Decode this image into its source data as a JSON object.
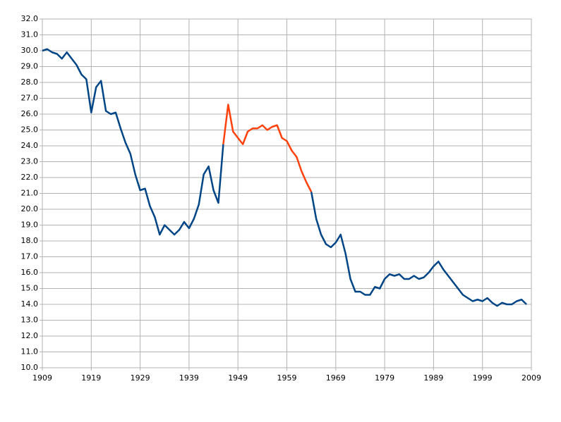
{
  "chart_data": {
    "type": "line",
    "x": [
      1909,
      1910,
      1911,
      1912,
      1913,
      1914,
      1915,
      1916,
      1917,
      1918,
      1919,
      1920,
      1921,
      1922,
      1923,
      1924,
      1925,
      1926,
      1927,
      1928,
      1929,
      1930,
      1931,
      1932,
      1933,
      1934,
      1935,
      1936,
      1937,
      1938,
      1939,
      1940,
      1941,
      1942,
      1943,
      1944,
      1945,
      1946,
      1947,
      1948,
      1949,
      1950,
      1951,
      1952,
      1953,
      1954,
      1955,
      1956,
      1957,
      1958,
      1959,
      1960,
      1961,
      1962,
      1963,
      1964,
      1965,
      1966,
      1967,
      1968,
      1969,
      1970,
      1971,
      1972,
      1973,
      1974,
      1975,
      1976,
      1977,
      1978,
      1979,
      1980,
      1981,
      1982,
      1983,
      1984,
      1985,
      1986,
      1987,
      1988,
      1989,
      1990,
      1991,
      1992,
      1993,
      1994,
      1995,
      1996,
      1997,
      1998,
      1999,
      2000,
      2001,
      2002,
      2003,
      2004,
      2005,
      2006,
      2007,
      2008
    ],
    "series": [
      {
        "color": "#004586",
        "values": [
          30.0,
          30.1,
          29.9,
          29.8,
          29.5,
          29.9,
          29.5,
          29.1,
          28.5,
          28.2,
          26.1,
          27.7,
          28.1,
          26.2,
          26.0,
          26.1,
          25.1,
          24.2,
          23.5,
          22.2,
          21.2,
          21.3,
          20.2,
          19.5,
          18.4,
          19.0,
          18.7,
          18.4,
          18.7,
          19.2,
          18.8,
          19.4,
          20.3,
          22.2,
          22.7,
          21.2,
          20.4,
          24.1,
          null,
          null,
          null,
          null,
          null,
          null,
          null,
          null,
          null,
          null,
          null,
          null,
          null,
          null,
          null,
          null,
          null,
          21.1,
          19.4,
          18.4,
          17.8,
          17.6,
          17.9,
          18.4,
          17.2,
          15.6,
          14.8,
          14.8,
          14.6,
          14.6,
          15.1,
          15.0,
          15.6,
          15.9,
          15.8,
          15.9,
          15.6,
          15.6,
          15.8,
          15.6,
          15.7,
          16.0,
          16.4,
          16.7,
          16.2,
          15.8,
          15.4,
          15.0,
          14.6,
          14.4,
          14.2,
          14.3,
          14.2,
          14.4,
          14.1,
          13.9,
          14.1,
          14.0,
          14.0,
          14.2,
          14.3,
          14.0
        ]
      },
      {
        "color": "#ff420e",
        "values": [
          null,
          null,
          null,
          null,
          null,
          null,
          null,
          null,
          null,
          null,
          null,
          null,
          null,
          null,
          null,
          null,
          null,
          null,
          null,
          null,
          null,
          null,
          null,
          null,
          null,
          null,
          null,
          null,
          null,
          null,
          null,
          null,
          null,
          null,
          null,
          null,
          null,
          24.1,
          26.6,
          24.9,
          24.5,
          24.1,
          24.9,
          25.1,
          25.1,
          25.3,
          25.0,
          25.2,
          25.3,
          24.5,
          24.3,
          23.7,
          23.3,
          22.4,
          21.7,
          21.1,
          null,
          null,
          null,
          null,
          null,
          null,
          null,
          null,
          null,
          null,
          null,
          null,
          null,
          null,
          null,
          null,
          null,
          null,
          null,
          null,
          null,
          null,
          null,
          null,
          null,
          null,
          null,
          null,
          null,
          null,
          null,
          null,
          null,
          null,
          null,
          null,
          null,
          null,
          null,
          null,
          null,
          null,
          null,
          null
        ]
      }
    ],
    "xlim": [
      1909,
      2009
    ],
    "xticks": [
      1909,
      1919,
      1929,
      1939,
      1949,
      1959,
      1969,
      1979,
      1989,
      1999,
      2009
    ],
    "ylim": [
      10,
      32
    ],
    "yticks": [
      {
        "value": 10,
        "label": "10.0"
      },
      {
        "value": 11,
        "label": "11.0"
      },
      {
        "value": 12,
        "label": "12.0"
      },
      {
        "value": 13,
        "label": "13.0"
      },
      {
        "value": 14,
        "label": "14.0"
      },
      {
        "value": 15,
        "label": "15.0"
      },
      {
        "value": 16,
        "label": "16.0"
      },
      {
        "value": 17,
        "label": "17.0"
      },
      {
        "value": 18,
        "label": "18.0"
      },
      {
        "value": 19,
        "label": "19.0"
      },
      {
        "value": 20,
        "label": "20.0"
      },
      {
        "value": 21,
        "label": "21.0"
      },
      {
        "value": 22,
        "label": "22.0"
      },
      {
        "value": 23,
        "label": "23.0"
      },
      {
        "value": 24,
        "label": "24.0"
      },
      {
        "value": 25,
        "label": "25.0"
      },
      {
        "value": 26,
        "label": "26.0"
      },
      {
        "value": 27,
        "label": "27.0"
      },
      {
        "value": 28,
        "label": "28.0"
      },
      {
        "value": 29,
        "label": "29.0"
      },
      {
        "value": 30,
        "label": "30.0"
      },
      {
        "value": 31,
        "label": "31.0"
      },
      {
        "value": 32,
        "label": "32.0"
      }
    ],
    "grid": true
  }
}
